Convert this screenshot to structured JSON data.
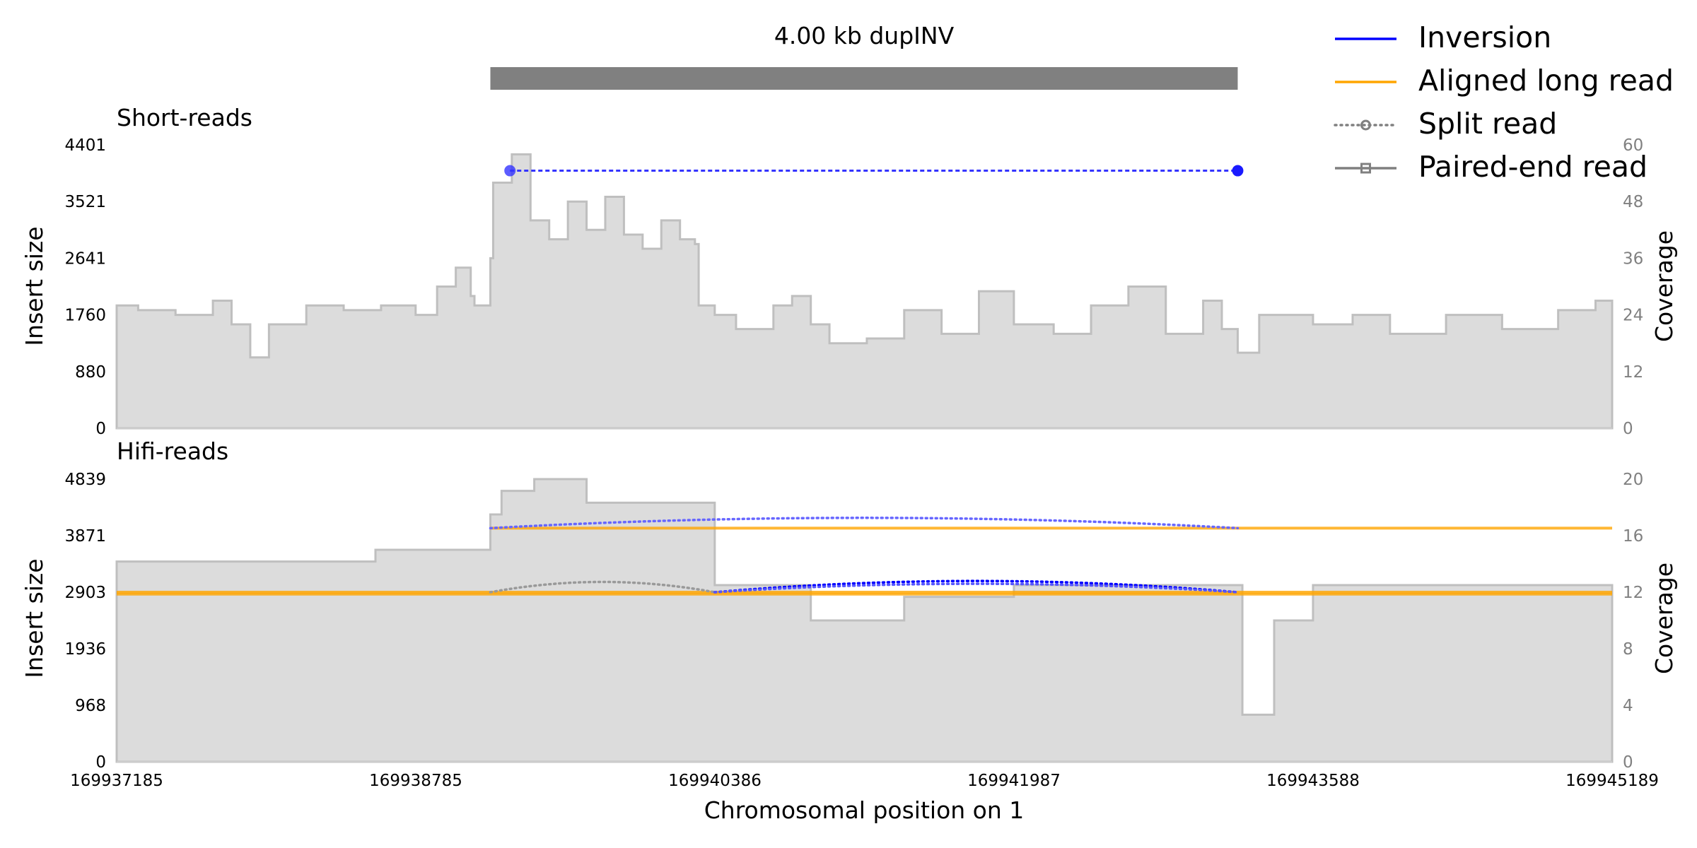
{
  "chart_data": {
    "type": "line",
    "title": "4.00 kb dupINV",
    "xlabel": "Chromosomal position on 1",
    "x_ticks": [
      "169937185",
      "169938785",
      "169940386",
      "169941987",
      "169943588",
      "169945189"
    ],
    "xlim": [
      169937185,
      169945189
    ],
    "sv_bar": {
      "start": 169939185,
      "end": 169943185
    },
    "legend": {
      "placement": "top-right",
      "entries": [
        {
          "label": "Inversion",
          "color": "#0000ff",
          "style": "solid"
        },
        {
          "label": "Aligned long read",
          "color": "#ffa500",
          "style": "solid"
        },
        {
          "label": "Split read",
          "color": "#808080",
          "style": "dotted-circle"
        },
        {
          "label": "Paired-end read",
          "color": "#808080",
          "style": "solid-square"
        }
      ]
    },
    "panels": [
      {
        "title": "Short-reads",
        "ylabel_left": "Insert size",
        "ylabel_right": "Coverage",
        "left_ticks": [
          "4401",
          "3521",
          "2641",
          "1760",
          "880",
          "0"
        ],
        "right_ticks": [
          "60",
          "48",
          "36",
          "24",
          "12",
          "0"
        ],
        "left_range": [
          0,
          4401
        ],
        "right_range": [
          0,
          60
        ],
        "coverage": {
          "x": [
            169937185,
            169937300,
            169937500,
            169937700,
            169937800,
            169937900,
            169938000,
            169938200,
            169938400,
            169938600,
            169938785,
            169938900,
            169939000,
            169939080,
            169939100,
            169939185,
            169939200,
            169939300,
            169939400,
            169939500,
            169939600,
            169939700,
            169939800,
            169939900,
            169940000,
            169940100,
            169940200,
            169940280,
            169940300,
            169940386,
            169940500,
            169940700,
            169940800,
            169940900,
            169941000,
            169941200,
            169941400,
            169941600,
            169941800,
            169941987,
            169942200,
            169942400,
            169942600,
            169942800,
            169943000,
            169943100,
            169943185,
            169943300,
            169943588,
            169943800,
            169944000,
            169944300,
            169944600,
            169944900,
            169945100,
            169945189
          ],
          "y": [
            26,
            25,
            24,
            27,
            22,
            15,
            22,
            26,
            25,
            26,
            24,
            30,
            34,
            28,
            26,
            36,
            52,
            58,
            44,
            40,
            48,
            42,
            49,
            41,
            38,
            44,
            40,
            39,
            26,
            24,
            21,
            26,
            28,
            22,
            18,
            19,
            25,
            20,
            29,
            22,
            20,
            26,
            30,
            20,
            27,
            21,
            16,
            24,
            22,
            24,
            20,
            24,
            21,
            25,
            27,
            24
          ]
        },
        "paired_end": {
          "start": 169939290,
          "end": 169943185,
          "y": 4000
        }
      },
      {
        "title": "Hifi-reads",
        "ylabel_left": "Insert size",
        "ylabel_right": "Coverage",
        "left_ticks": [
          "4839",
          "3871",
          "2903",
          "1936",
          "968",
          "0"
        ],
        "right_ticks": [
          "20",
          "16",
          "12",
          "8",
          "4",
          "0"
        ],
        "left_range": [
          0,
          4839
        ],
        "right_range": [
          0,
          24
        ],
        "coverage": {
          "x": [
            169937185,
            169938570,
            169939185,
            169939245,
            169939420,
            169939700,
            169940150,
            169940386,
            169940900,
            169941400,
            169941987,
            169943185,
            169943210,
            169943380,
            169943588,
            169945189
          ],
          "y": [
            17,
            18,
            21,
            23,
            24,
            22,
            22,
            15,
            12,
            14,
            15,
            15,
            4,
            12,
            15,
            15
          ]
        },
        "aligned_reads": [
          {
            "start": 169939185,
            "end": 169943185,
            "y": 4000
          },
          {
            "start": 169943185,
            "end": 169945189,
            "y": 4000
          },
          {
            "start": 169937185,
            "end": 169945189,
            "y": 2903
          },
          {
            "start": 169937185,
            "end": 169945189,
            "y": 2870
          }
        ],
        "split_reads": [
          {
            "start": 169939185,
            "end": 169943185,
            "y": 4000,
            "color": "#6666ff",
            "height": 220
          },
          {
            "start": 169939185,
            "end": 169940386,
            "y": 2903,
            "color": "#999999",
            "height": 220
          },
          {
            "start": 169940386,
            "end": 169943185,
            "y": 2903,
            "color": "#0000ff",
            "height": 240
          },
          {
            "start": 169940386,
            "end": 169943185,
            "y": 2903,
            "color": "#5555ff",
            "height": 180
          }
        ]
      }
    ]
  }
}
